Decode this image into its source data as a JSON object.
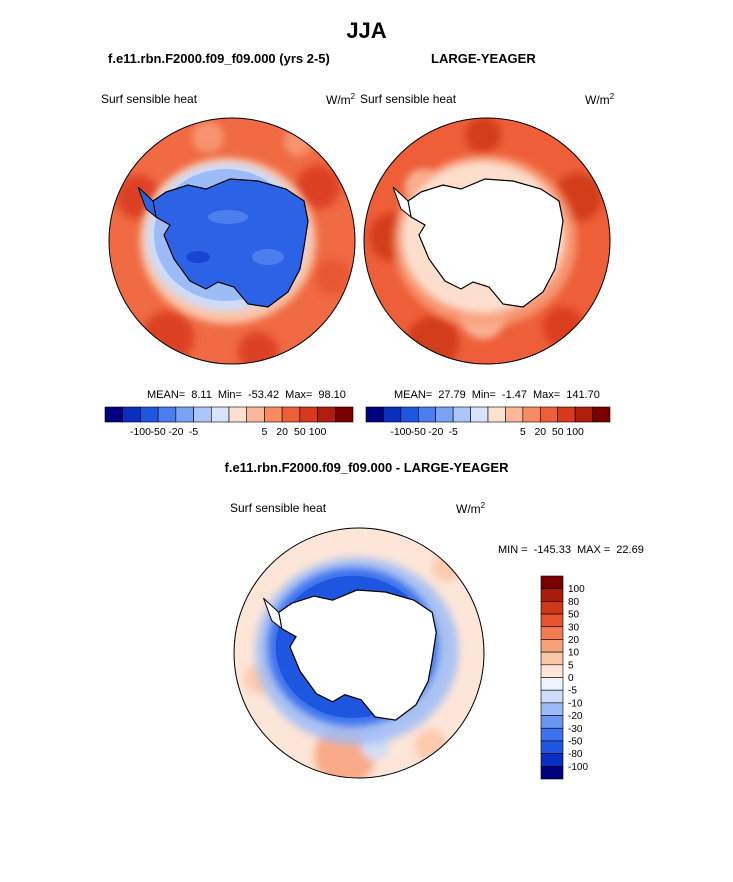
{
  "page": {
    "season": "JJA",
    "case_title": "f.e11.rbn.F2000.f09_f09.000 (yrs 2-5)",
    "control_title": "LARGE-YEAGER",
    "diff_title": "f.e11.rbn.F2000.f09_f09.000 - LARGE-YEAGER"
  },
  "colors": {
    "land": "#ffffff",
    "coast": "#000000",
    "hbar": [
      "#000080",
      "#0a2fc0",
      "#1f56e0",
      "#4a7ef0",
      "#7ba3f5",
      "#abc6f8",
      "#d7e4fb",
      "#fde1d0",
      "#fbb898",
      "#f78c63",
      "#ee5f39",
      "#d8381e",
      "#b01d0e",
      "#7a0000"
    ],
    "vbar": [
      "#000080",
      "#0a2fc0",
      "#1f56e0",
      "#3d72ee",
      "#6a95f3",
      "#9dbcf7",
      "#cddcfa",
      "#eef3fd",
      "#fde6d8",
      "#fbc5a8",
      "#f8a07c",
      "#f27b52",
      "#e6532f",
      "#cf3719",
      "#a81c0a",
      "#7a0000"
    ]
  },
  "chart_data": [
    {
      "type": "heatmap",
      "title": "f.e11.rbn.F2000.f09_f09.000 (yrs 2-5)",
      "label": "Surf sensible heat",
      "units": "W/m",
      "units_sup": "2",
      "projection": "south-polar-stereographic",
      "stats": {
        "mean_label": "MEAN=",
        "mean": "8.11",
        "min_label": "Min=",
        "min": "-53.42",
        "max_label": "Max=",
        "max": "98.10"
      },
      "colorbar_ticks": [
        "-100",
        "-50",
        "-20",
        "-5",
        "5",
        "20",
        "50",
        "100"
      ],
      "colorbar_orientation": "horizontal"
    },
    {
      "type": "heatmap",
      "title": "LARGE-YEAGER",
      "label": "Surf sensible heat",
      "units": "W/m",
      "units_sup": "2",
      "projection": "south-polar-stereographic",
      "stats": {
        "mean_label": "MEAN=",
        "mean": "27.79",
        "min_label": "Min=",
        "min": "-1.47",
        "max_label": "Max=",
        "max": "141.70"
      },
      "colorbar_ticks": [
        "-100",
        "-50",
        "-20",
        "-5",
        "5",
        "20",
        "50",
        "100"
      ],
      "colorbar_orientation": "horizontal"
    },
    {
      "type": "heatmap",
      "title": "f.e11.rbn.F2000.f09_f09.000 - LARGE-YEAGER",
      "label": "Surf sensible heat",
      "units": "W/m",
      "units_sup": "2",
      "projection": "south-polar-stereographic",
      "stats": {
        "min_label": "MIN =",
        "min": "-145.33",
        "max_label": "MAX =",
        "max": "22.69"
      },
      "colorbar_ticks": [
        "100",
        "80",
        "50",
        "30",
        "20",
        "10",
        "5",
        "0",
        "-5",
        "-10",
        "-20",
        "-30",
        "-50",
        "-80",
        "-100"
      ],
      "colorbar_orientation": "vertical"
    }
  ]
}
